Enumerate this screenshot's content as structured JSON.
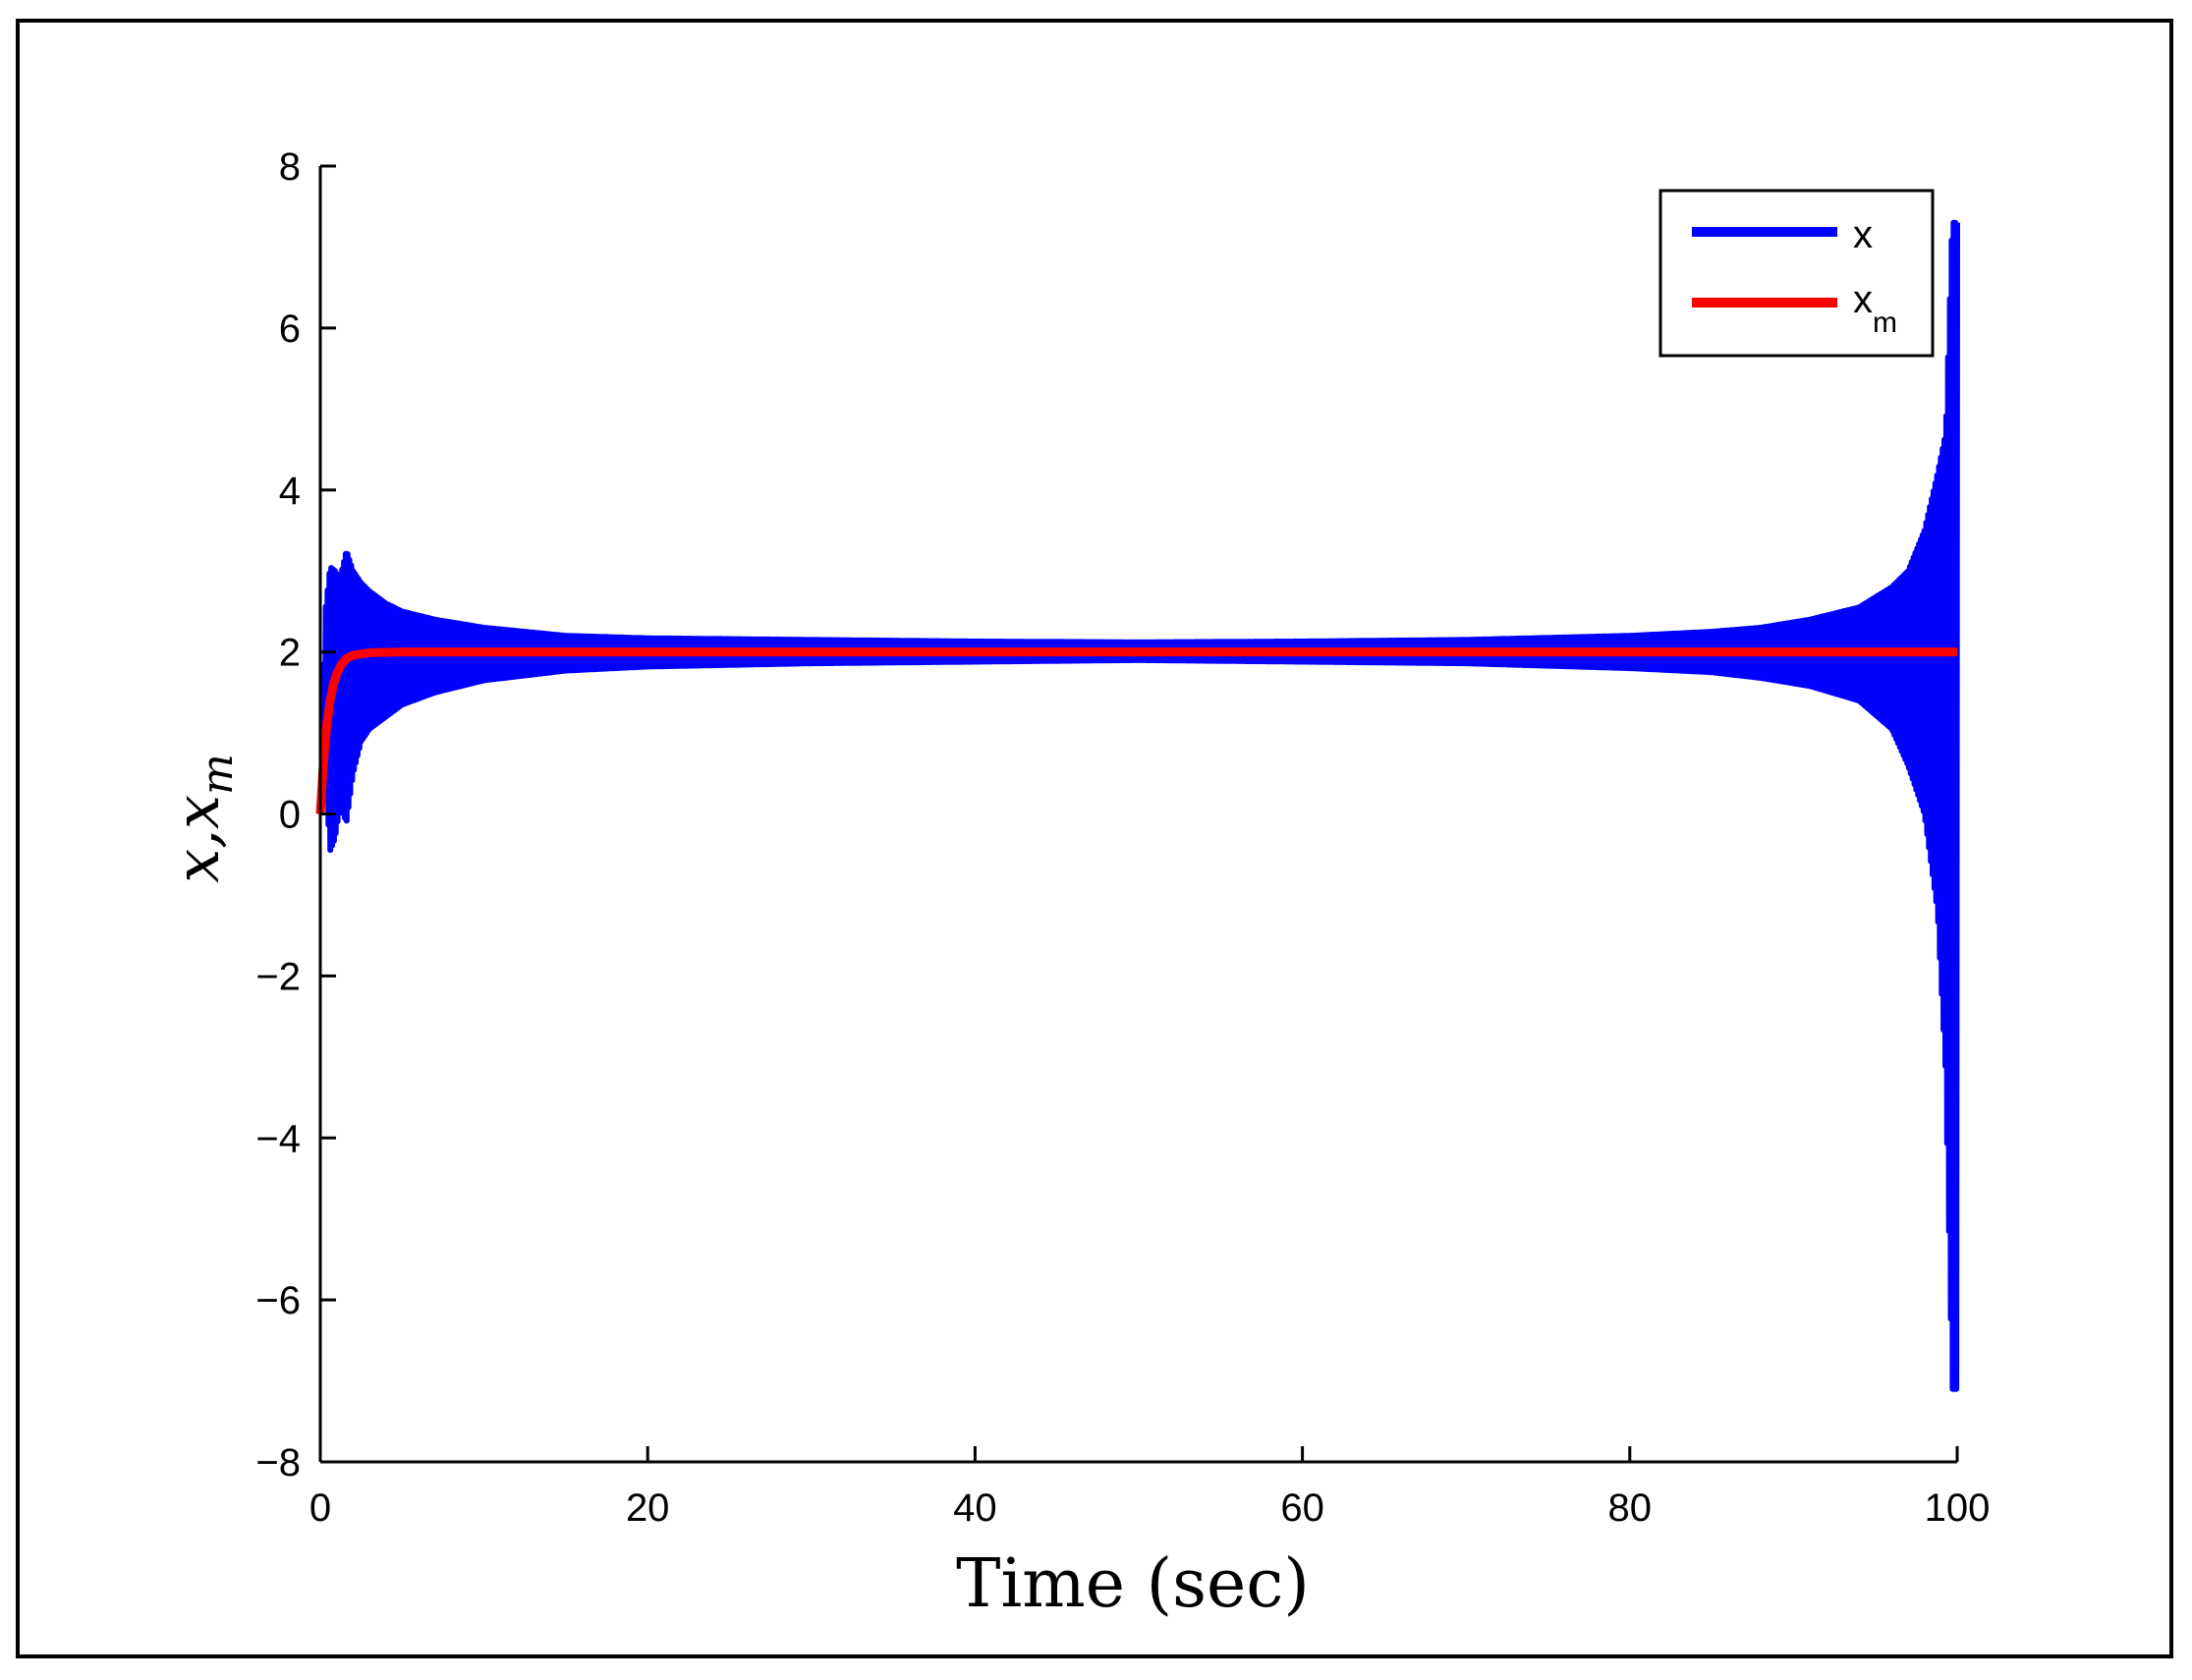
{
  "chart_data": {
    "type": "line",
    "xlabel": "Time (sec)",
    "ylabel": "x,x_m",
    "ylabel_main": "x,x",
    "ylabel_sub": "m",
    "xlim": [
      0,
      100
    ],
    "ylim": [
      -8,
      8
    ],
    "x_ticks": [
      "0",
      "20",
      "40",
      "60",
      "80",
      "100"
    ],
    "x_tick_values": [
      0,
      20,
      40,
      60,
      80,
      100
    ],
    "y_ticks": [
      "8",
      "6",
      "4",
      "2",
      "0",
      "−2",
      "−4",
      "−6",
      "−8"
    ],
    "y_tick_values": [
      8,
      6,
      4,
      2,
      0,
      -2,
      -4,
      -6,
      -8
    ],
    "grid": false,
    "legend_position": "top-right",
    "series": [
      {
        "name": "x",
        "color": "#0000ff",
        "style": "high-frequency oscillation between upper and lower envelope",
        "envelope_t": [
          0,
          0.3,
          0.6,
          0.9,
          1.2,
          1.6,
          2.0,
          2.5,
          3,
          4,
          5,
          7,
          10,
          15,
          20,
          30,
          40,
          50,
          60,
          70,
          80,
          85,
          88,
          91,
          94,
          96,
          97,
          98,
          98.8,
          99.3,
          99.7,
          100
        ],
        "upper": [
          0,
          2.5,
          3.05,
          3.0,
          2.9,
          3.25,
          3.0,
          2.85,
          2.75,
          2.6,
          2.5,
          2.4,
          2.3,
          2.2,
          2.17,
          2.15,
          2.13,
          2.12,
          2.13,
          2.15,
          2.2,
          2.25,
          2.3,
          2.4,
          2.55,
          2.8,
          3.0,
          3.5,
          4.2,
          4.7,
          7.3,
          7.3
        ],
        "lower": [
          0,
          0.5,
          -0.45,
          -0.3,
          0.1,
          -0.1,
          0.5,
          0.9,
          1.05,
          1.2,
          1.35,
          1.5,
          1.65,
          1.77,
          1.82,
          1.86,
          1.88,
          1.9,
          1.88,
          1.86,
          1.8,
          1.75,
          1.68,
          1.58,
          1.4,
          1.05,
          0.6,
          0.0,
          -1.2,
          -3.2,
          -7.1,
          -7.1
        ]
      },
      {
        "name": "x_m",
        "name_main": "x",
        "name_sub": "m",
        "color": "#ff0000",
        "t": [
          0,
          0.2,
          0.4,
          0.6,
          0.8,
          1.0,
          1.3,
          1.6,
          2.0,
          3.0,
          5.0,
          10,
          20,
          40,
          60,
          80,
          100
        ],
        "values": [
          0,
          0.65,
          1.1,
          1.4,
          1.6,
          1.73,
          1.85,
          1.92,
          1.96,
          1.99,
          2.0,
          2.0,
          2.0,
          2.0,
          2.0,
          2.0,
          2.0
        ]
      }
    ]
  }
}
